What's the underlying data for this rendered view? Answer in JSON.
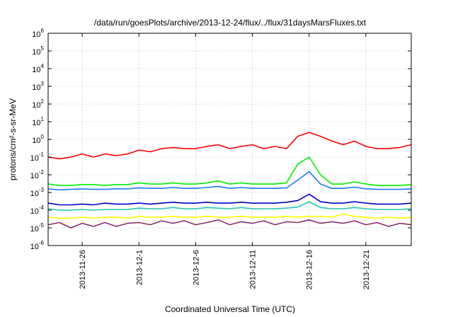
{
  "chart_data": {
    "type": "line",
    "title": "/data/run/goesPlots/archive/2013-12-24/flux/../flux/31daysMarsFluxes.txt",
    "xlabel": "Coordinated Universal Time (UTC)",
    "ylabel": "protons/cm²-s-sr-MeV",
    "scale_y": "log",
    "ylim": [
      1e-06,
      1000000.0
    ],
    "x_unit": "date",
    "xlim": [
      "2013-11-23",
      "2013-12-25"
    ],
    "x_ticks": [
      "2013-11-26",
      "2013-12-1",
      "2013-12-6",
      "2013-12-11",
      "2013-12-16",
      "2013-12-21"
    ],
    "y_ticks": [
      {
        "base": "10",
        "exp": "-6"
      },
      {
        "base": "10",
        "exp": "-5"
      },
      {
        "base": "10",
        "exp": "-4"
      },
      {
        "base": "10",
        "exp": "-3"
      },
      {
        "base": "10",
        "exp": "-2"
      },
      {
        "base": "10",
        "exp": "-1"
      },
      {
        "base": "10",
        "exp": "0"
      },
      {
        "base": "10",
        "exp": "1"
      },
      {
        "base": "10",
        "exp": "2"
      },
      {
        "base": "10",
        "exp": "3"
      },
      {
        "base": "10",
        "exp": "4"
      },
      {
        "base": "10",
        "exp": "5"
      },
      {
        "base": "10",
        "exp": "6"
      }
    ],
    "grid": true,
    "legend": "none",
    "series": [
      {
        "color": "#ff0000",
        "x": [
          "2013-11-23",
          "2013-11-24",
          "2013-11-25",
          "2013-11-26",
          "2013-11-27",
          "2013-11-28",
          "2013-11-29",
          "2013-11-30",
          "2013-12-01",
          "2013-12-02",
          "2013-12-03",
          "2013-12-04",
          "2013-12-05",
          "2013-12-06",
          "2013-12-07",
          "2013-12-08",
          "2013-12-09",
          "2013-12-10",
          "2013-12-11",
          "2013-12-12",
          "2013-12-13",
          "2013-12-14",
          "2013-12-15",
          "2013-12-16",
          "2013-12-17",
          "2013-12-18",
          "2013-12-19",
          "2013-12-20",
          "2013-12-21",
          "2013-12-22",
          "2013-12-23",
          "2013-12-24",
          "2013-12-25"
        ],
        "y": [
          0.1,
          0.08,
          0.1,
          0.15,
          0.1,
          0.15,
          0.12,
          0.15,
          0.25,
          0.2,
          0.3,
          0.35,
          0.3,
          0.3,
          0.4,
          0.5,
          0.3,
          0.4,
          0.5,
          0.3,
          0.4,
          0.3,
          1.5,
          2.5,
          1.5,
          0.8,
          0.5,
          0.8,
          0.4,
          0.3,
          0.3,
          0.35,
          0.5
        ]
      },
      {
        "color": "#00ee00",
        "x": [
          "2013-11-23",
          "2013-11-24",
          "2013-11-25",
          "2013-11-26",
          "2013-11-27",
          "2013-11-28",
          "2013-11-29",
          "2013-11-30",
          "2013-12-01",
          "2013-12-02",
          "2013-12-03",
          "2013-12-04",
          "2013-12-05",
          "2013-12-06",
          "2013-12-07",
          "2013-12-08",
          "2013-12-09",
          "2013-12-10",
          "2013-12-11",
          "2013-12-12",
          "2013-12-13",
          "2013-12-14",
          "2013-12-15",
          "2013-12-16",
          "2013-12-17",
          "2013-12-18",
          "2013-12-19",
          "2013-12-20",
          "2013-12-21",
          "2013-12-22",
          "2013-12-23",
          "2013-12-24",
          "2013-12-25"
        ],
        "y": [
          0.003,
          0.0025,
          0.0025,
          0.0028,
          0.0028,
          0.0025,
          0.0028,
          0.0028,
          0.0035,
          0.003,
          0.003,
          0.0035,
          0.003,
          0.003,
          0.0035,
          0.0045,
          0.003,
          0.0035,
          0.003,
          0.003,
          0.003,
          0.0035,
          0.04,
          0.1,
          0.01,
          0.003,
          0.003,
          0.004,
          0.003,
          0.0025,
          0.0025,
          0.0025,
          0.0028
        ]
      },
      {
        "color": "#1e78ff",
        "x": [
          "2013-11-23",
          "2013-11-24",
          "2013-11-25",
          "2013-11-26",
          "2013-11-27",
          "2013-11-28",
          "2013-11-29",
          "2013-11-30",
          "2013-12-01",
          "2013-12-02",
          "2013-12-03",
          "2013-12-04",
          "2013-12-05",
          "2013-12-06",
          "2013-12-07",
          "2013-12-08",
          "2013-12-09",
          "2013-12-10",
          "2013-12-11",
          "2013-12-12",
          "2013-12-13",
          "2013-12-14",
          "2013-12-15",
          "2013-12-16",
          "2013-12-17",
          "2013-12-18",
          "2013-12-19",
          "2013-12-20",
          "2013-12-21",
          "2013-12-22",
          "2013-12-23",
          "2013-12-24",
          "2013-12-25"
        ],
        "y": [
          0.0016,
          0.0014,
          0.0015,
          0.0016,
          0.0015,
          0.0015,
          0.0016,
          0.0016,
          0.0018,
          0.0017,
          0.0017,
          0.0019,
          0.0017,
          0.0017,
          0.0019,
          0.0022,
          0.0017,
          0.0019,
          0.0017,
          0.0017,
          0.0017,
          0.0018,
          0.005,
          0.015,
          0.003,
          0.0017,
          0.0017,
          0.002,
          0.0016,
          0.0015,
          0.0015,
          0.0015,
          0.0016
        ]
      },
      {
        "color": "#0000cc",
        "x": [
          "2013-11-23",
          "2013-11-24",
          "2013-11-25",
          "2013-11-26",
          "2013-11-27",
          "2013-11-28",
          "2013-11-29",
          "2013-11-30",
          "2013-12-01",
          "2013-12-02",
          "2013-12-03",
          "2013-12-04",
          "2013-12-05",
          "2013-12-06",
          "2013-12-07",
          "2013-12-08",
          "2013-12-09",
          "2013-12-10",
          "2013-12-11",
          "2013-12-12",
          "2013-12-13",
          "2013-12-14",
          "2013-12-15",
          "2013-12-16",
          "2013-12-17",
          "2013-12-18",
          "2013-12-19",
          "2013-12-20",
          "2013-12-21",
          "2013-12-22",
          "2013-12-23",
          "2013-12-24",
          "2013-12-25"
        ],
        "y": [
          0.00025,
          0.0002,
          0.0002,
          0.00022,
          0.0002,
          0.00025,
          0.00022,
          0.00022,
          0.00025,
          0.00022,
          0.00025,
          0.00028,
          0.00025,
          0.00025,
          0.00028,
          0.00025,
          0.00025,
          0.00028,
          0.00025,
          0.00025,
          0.00025,
          0.00028,
          0.00035,
          0.0008,
          0.0003,
          0.00025,
          0.00025,
          0.0003,
          0.00025,
          0.00022,
          0.00022,
          0.00022,
          0.00025
        ]
      },
      {
        "color": "#20c8b0",
        "x": [
          "2013-11-23",
          "2013-11-24",
          "2013-11-25",
          "2013-11-26",
          "2013-11-27",
          "2013-11-28",
          "2013-11-29",
          "2013-11-30",
          "2013-12-01",
          "2013-12-02",
          "2013-12-03",
          "2013-12-04",
          "2013-12-05",
          "2013-12-06",
          "2013-12-07",
          "2013-12-08",
          "2013-12-09",
          "2013-12-10",
          "2013-12-11",
          "2013-12-12",
          "2013-12-13",
          "2013-12-14",
          "2013-12-15",
          "2013-12-16",
          "2013-12-17",
          "2013-12-18",
          "2013-12-19",
          "2013-12-20",
          "2013-12-21",
          "2013-12-22",
          "2013-12-23",
          "2013-12-24",
          "2013-12-25"
        ],
        "y": [
          0.00012,
          0.0001,
          0.0001,
          0.00011,
          0.0001,
          0.00011,
          0.00011,
          0.00011,
          0.00013,
          0.00012,
          0.00012,
          0.00014,
          0.00012,
          0.00012,
          0.00014,
          0.00013,
          0.00012,
          0.00014,
          0.00012,
          0.00012,
          0.00012,
          0.00013,
          0.00015,
          0.0003,
          0.00014,
          0.00012,
          0.00012,
          0.00014,
          0.00012,
          0.00011,
          0.00011,
          0.00011,
          0.00012
        ]
      },
      {
        "color": "#ffff00",
        "x": [
          "2013-11-23",
          "2013-11-24",
          "2013-11-25",
          "2013-11-26",
          "2013-11-27",
          "2013-11-28",
          "2013-11-29",
          "2013-11-30",
          "2013-12-01",
          "2013-12-02",
          "2013-12-03",
          "2013-12-04",
          "2013-12-05",
          "2013-12-06",
          "2013-12-07",
          "2013-12-08",
          "2013-12-09",
          "2013-12-10",
          "2013-12-11",
          "2013-12-12",
          "2013-12-13",
          "2013-12-14",
          "2013-12-15",
          "2013-12-16",
          "2013-12-17",
          "2013-12-18",
          "2013-12-19",
          "2013-12-20",
          "2013-12-21",
          "2013-12-22",
          "2013-12-23",
          "2013-12-24",
          "2013-12-25"
        ],
        "y": [
          4e-05,
          3.5e-05,
          3.5e-05,
          4e-05,
          3.5e-05,
          4e-05,
          4e-05,
          3.5e-05,
          4.5e-05,
          4e-05,
          4e-05,
          4.5e-05,
          4e-05,
          4e-05,
          4.5e-05,
          4e-05,
          4e-05,
          4.5e-05,
          4e-05,
          4e-05,
          4e-05,
          4.5e-05,
          4e-05,
          4.5e-05,
          4.5e-05,
          4e-05,
          6e-05,
          4.5e-05,
          4e-05,
          3.5e-05,
          4e-05,
          3.5e-05,
          4e-05
        ]
      },
      {
        "color": "#8b2f6b",
        "x": [
          "2013-11-23",
          "2013-11-24",
          "2013-11-25",
          "2013-11-26",
          "2013-11-27",
          "2013-11-28",
          "2013-11-29",
          "2013-11-30",
          "2013-12-01",
          "2013-12-02",
          "2013-12-03",
          "2013-12-04",
          "2013-12-05",
          "2013-12-06",
          "2013-12-07",
          "2013-12-08",
          "2013-12-09",
          "2013-12-10",
          "2013-12-11",
          "2013-12-12",
          "2013-12-13",
          "2013-12-14",
          "2013-12-15",
          "2013-12-16",
          "2013-12-17",
          "2013-12-18",
          "2013-12-19",
          "2013-12-20",
          "2013-12-21",
          "2013-12-22",
          "2013-12-23",
          "2013-12-24",
          "2013-12-25"
        ],
        "y": [
          1.5e-05,
          2e-05,
          1e-05,
          1.8e-05,
          1.2e-05,
          2e-05,
          1.2e-05,
          1.8e-05,
          2e-05,
          1.5e-05,
          2.5e-05,
          1.8e-05,
          2.5e-05,
          1.5e-05,
          2e-05,
          2.8e-05,
          1.5e-05,
          2.2e-05,
          1.8e-05,
          2.5e-05,
          1.5e-05,
          2.2e-05,
          2e-05,
          2.8e-05,
          1.8e-05,
          2.2e-05,
          1.8e-05,
          2.5e-05,
          1.5e-05,
          2e-05,
          1.2e-05,
          1.8e-05,
          1.5e-05
        ]
      }
    ]
  }
}
